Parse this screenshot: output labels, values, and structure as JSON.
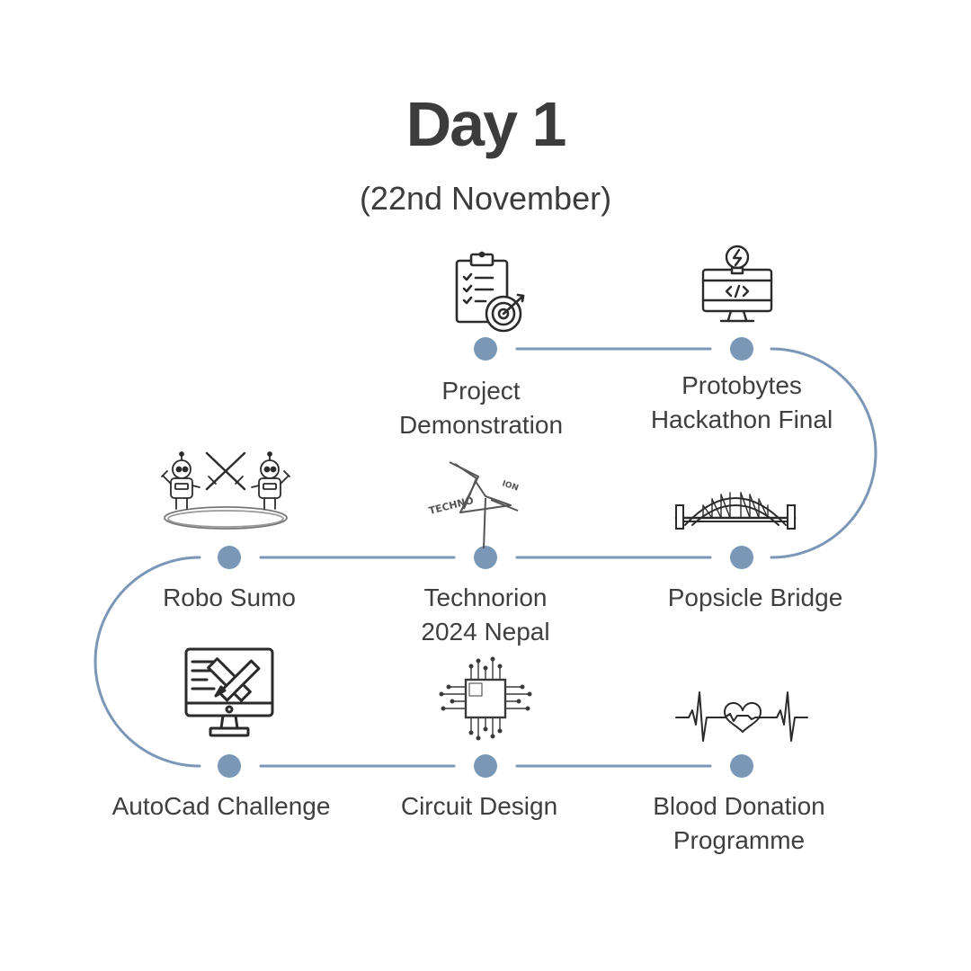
{
  "header": {
    "title": "Day 1",
    "subtitle": "(22nd November)"
  },
  "colors": {
    "track": "#7b97b8",
    "node": "#7b97b8",
    "text": "#3f3f3f"
  },
  "events": [
    {
      "lines": [
        "Project",
        "Demonstration"
      ],
      "icon": "checklist-target-icon"
    },
    {
      "lines": [
        "Protobytes",
        "Hackathon Final"
      ],
      "icon": "lightbulb-monitor-code-icon"
    },
    {
      "lines": [
        "Popsicle Bridge"
      ],
      "icon": "arch-bridge-icon"
    },
    {
      "lines": [
        "Technorion",
        "2024 Nepal"
      ],
      "icon": "technorion-logo-icon",
      "logo_text": [
        "TECHNO",
        "ION"
      ]
    },
    {
      "lines": [
        "Robo Sumo"
      ],
      "icon": "fighting-robots-icon"
    },
    {
      "lines": [
        "AutoCad Challenge"
      ],
      "icon": "monitor-drafting-icon"
    },
    {
      "lines": [
        "Circuit Design"
      ],
      "icon": "microchip-icon"
    },
    {
      "lines": [
        "Blood Donation",
        "Programme"
      ],
      "icon": "heartbeat-icon"
    }
  ]
}
